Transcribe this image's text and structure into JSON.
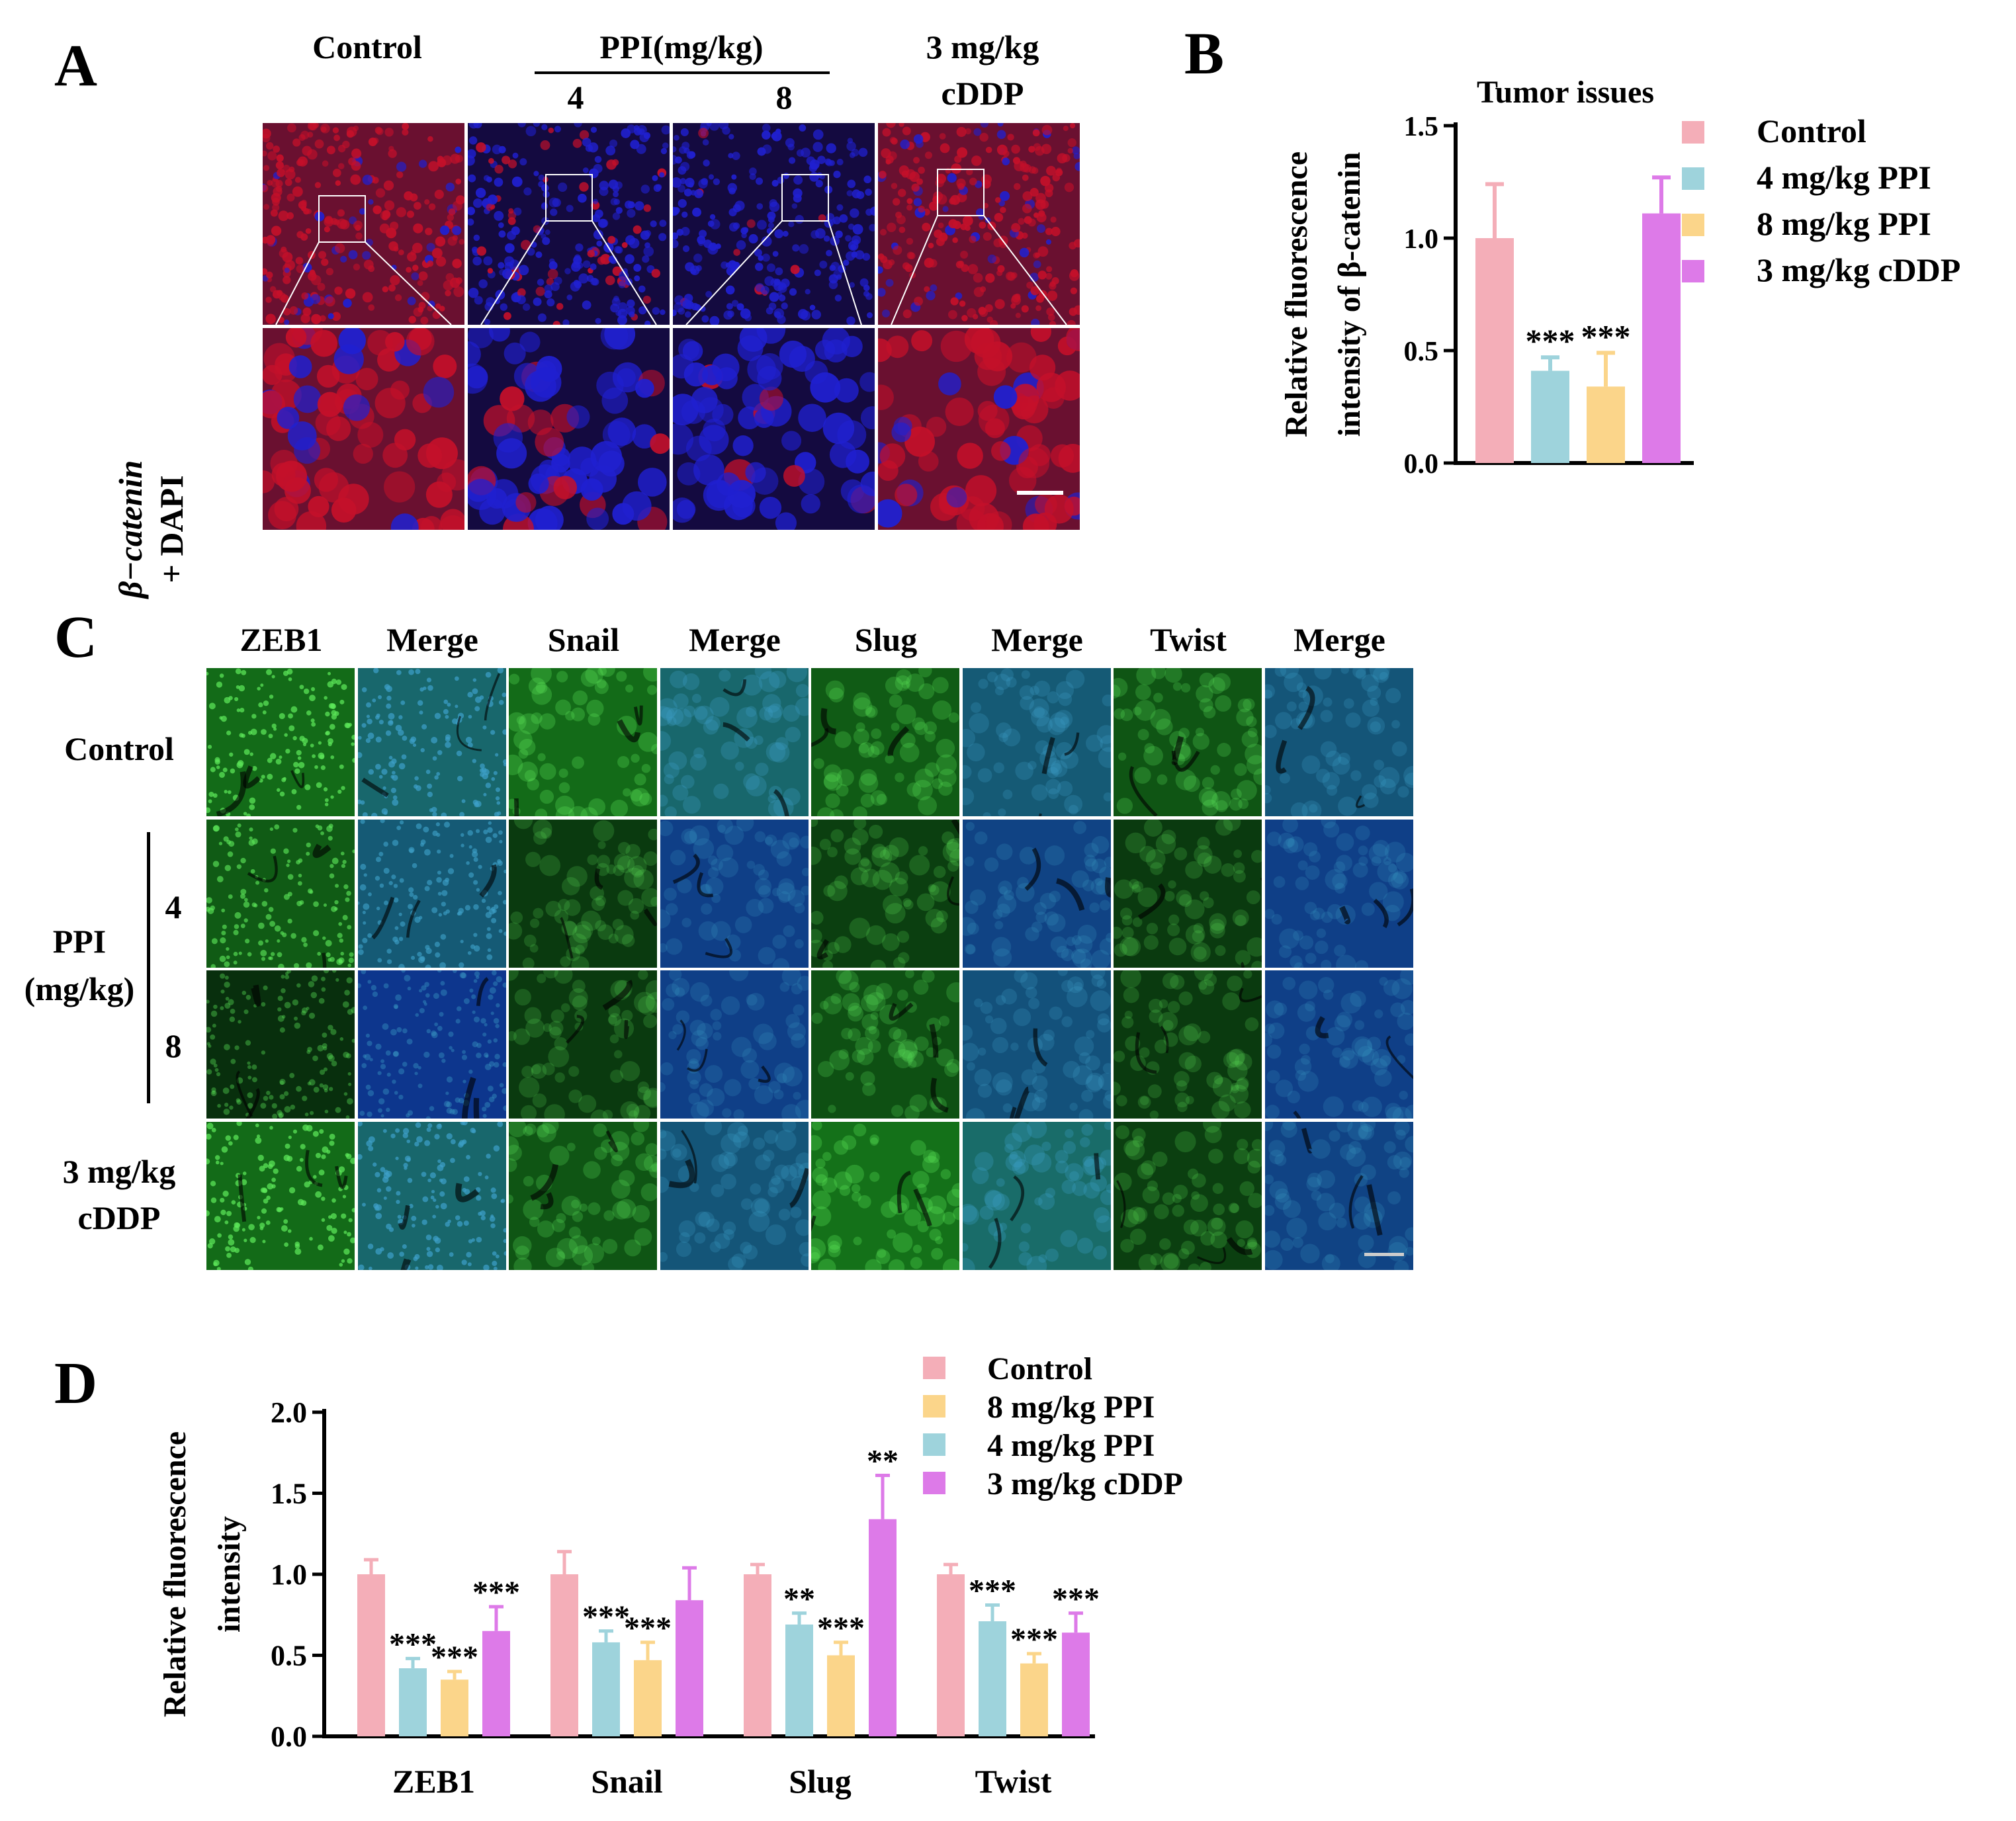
{
  "panels": {
    "A": "A",
    "B": "B",
    "C": "C",
    "D": "D"
  },
  "panelA": {
    "col_control": "Control",
    "col_ppi_group": "PPI(mg/kg)",
    "col_ppi_4": "4",
    "col_ppi_8": "8",
    "col_cddp_line1": "3 mg/kg",
    "col_cddp_line2": "cDDP",
    "row_label_line1": "β−catenin",
    "row_label_line2": "+ DAPI",
    "colors": {
      "stain": "#c4102a",
      "nucleus": "#2020d0",
      "bg": "#1a0a2a"
    }
  },
  "panelC": {
    "columns": [
      "ZEB1",
      "Merge",
      "Snail",
      "Merge",
      "Slug",
      "Merge",
      "Twist",
      "Merge"
    ],
    "row_control": "Control",
    "row_ppi_line1": "PPI",
    "row_ppi_line2": "(mg/kg)",
    "row_ppi_4": "4",
    "row_ppi_8": "8",
    "row_cddp_line1": "3 mg/kg",
    "row_cddp_line2": "cDDP",
    "colors": {
      "green": "#1ea02a",
      "blue": "#1c3cb8"
    }
  },
  "chart_data": [
    {
      "id": "B",
      "type": "bar",
      "title": "Tumor issues",
      "ylabel_line1": "Relative fluorescence",
      "ylabel_line2": "intensity of β-catenin",
      "ylim": [
        0,
        1.5
      ],
      "yticks": [
        "0.0",
        "0.5",
        "1.0",
        "1.5"
      ],
      "legend_position": "right",
      "categories": [
        "Control",
        "4 mg/kg PPI",
        "8 mg/kg PPI",
        "3 mg/kg cDDP"
      ],
      "values": [
        1.0,
        0.41,
        0.34,
        1.11
      ],
      "errors": [
        0.24,
        0.06,
        0.15,
        0.16
      ],
      "annotations": [
        "",
        "***",
        "***",
        ""
      ],
      "colors": [
        "#f4aeb8",
        "#9ed3dc",
        "#fbd58a",
        "#dd7ae8"
      ]
    },
    {
      "id": "D",
      "type": "bar",
      "ylabel_line1": "Relative fluorescence",
      "ylabel_line2": "intensity",
      "ylim": [
        0,
        2.0
      ],
      "yticks": [
        "0.0",
        "0.5",
        "1.0",
        "1.5",
        "2.0"
      ],
      "legend_position": "top-right",
      "categories": [
        "ZEB1",
        "Snail",
        "Slug",
        "Twist"
      ],
      "legend": [
        "Control",
        "8 mg/kg PPI",
        "4 mg/kg PPI",
        "3 mg/kg cDDP"
      ],
      "legend_colors": [
        "#f4aeb8",
        "#fbd58a",
        "#9ed3dc",
        "#dd7ae8"
      ],
      "series": [
        {
          "name": "Control",
          "color": "#f4aeb8",
          "values": [
            1.0,
            1.0,
            1.0,
            1.0
          ],
          "errors": [
            0.09,
            0.14,
            0.06,
            0.06
          ],
          "annotations": [
            "",
            "",
            "",
            ""
          ]
        },
        {
          "name": "4 mg/kg PPI",
          "color": "#9ed3dc",
          "values": [
            0.42,
            0.58,
            0.69,
            0.71
          ],
          "errors": [
            0.06,
            0.07,
            0.07,
            0.1
          ],
          "annotations": [
            "***",
            "***",
            "**",
            "***"
          ]
        },
        {
          "name": "8 mg/kg PPI",
          "color": "#fbd58a",
          "values": [
            0.35,
            0.47,
            0.5,
            0.45
          ],
          "errors": [
            0.05,
            0.11,
            0.08,
            0.06
          ],
          "annotations": [
            "***",
            "***",
            "***",
            "***"
          ]
        },
        {
          "name": "3 mg/kg cDDP",
          "color": "#dd7ae8",
          "values": [
            0.65,
            0.84,
            1.34,
            0.64
          ],
          "errors": [
            0.15,
            0.2,
            0.27,
            0.12
          ],
          "annotations": [
            "***",
            "",
            "**",
            "***"
          ]
        }
      ]
    }
  ]
}
